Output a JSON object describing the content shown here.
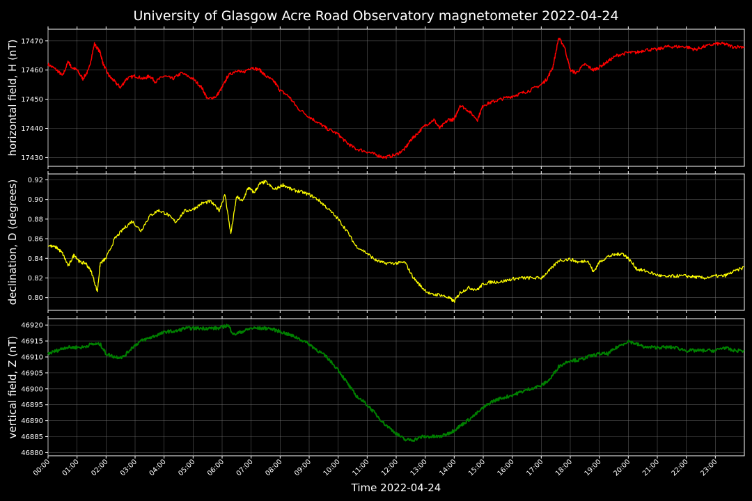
{
  "title": "University of Glasgow Acre Road Observatory magnetometer 2022-04-24",
  "chart_data": [
    {
      "type": "line",
      "ylabel": "horizontal field, H (nT)",
      "color": "#ff0000",
      "ylim": [
        17427,
        17474
      ],
      "yticks": [
        17430,
        17440,
        17450,
        17460,
        17470
      ],
      "ytick_labels": [
        "17430",
        "17440",
        "17450",
        "17460",
        "17470"
      ],
      "x_hours": [
        0,
        0.3,
        0.5,
        0.7,
        0.8,
        1.0,
        1.2,
        1.4,
        1.6,
        1.8,
        1.9,
        2.1,
        2.3,
        2.5,
        2.7,
        3.0,
        3.3,
        3.5,
        3.7,
        4.0,
        4.3,
        4.6,
        5.0,
        5.3,
        5.5,
        5.8,
        6.0,
        6.2,
        6.5,
        6.7,
        7.0,
        7.3,
        7.5,
        7.8,
        8.0,
        8.3,
        8.6,
        9.0,
        9.3,
        9.6,
        10.0,
        10.3,
        10.6,
        11.0,
        11.3,
        11.6,
        12.0,
        12.3,
        12.5,
        12.7,
        13.0,
        13.3,
        13.5,
        13.8,
        14.0,
        14.2,
        14.5,
        14.8,
        15.0,
        15.3,
        15.6,
        16.0,
        16.3,
        16.6,
        17.0,
        17.2,
        17.4,
        17.6,
        17.8,
        18.0,
        18.2,
        18.5,
        18.8,
        19.0,
        19.3,
        19.6,
        20.0,
        20.3,
        20.6,
        21.0,
        21.3,
        21.6,
        22.0,
        22.3,
        22.6,
        23.0,
        23.3,
        23.6,
        24.0
      ],
      "y": [
        17462,
        17460,
        17458,
        17463,
        17461,
        17460,
        17457,
        17460,
        17469,
        17466,
        17462,
        17458,
        17456,
        17454,
        17457,
        17458,
        17457,
        17458,
        17456,
        17458,
        17457,
        17459,
        17457,
        17454,
        17450,
        17451,
        17454,
        17458,
        17460,
        17459,
        17461,
        17460,
        17458,
        17456,
        17453,
        17451,
        17447,
        17444,
        17442,
        17440,
        17438,
        17435,
        17433,
        17432,
        17431,
        17430,
        17431,
        17433,
        17436,
        17438,
        17441,
        17443,
        17440,
        17443,
        17443,
        17448,
        17446,
        17443,
        17448,
        17449,
        17450,
        17451,
        17452,
        17453,
        17455,
        17457,
        17461,
        17471,
        17468,
        17460,
        17459,
        17462,
        17460,
        17461,
        17463,
        17465,
        17466,
        17466,
        17467,
        17467,
        17468,
        17468,
        17468,
        17467,
        17468,
        17469,
        17469,
        17468,
        17468
      ],
      "line_width": 1.5
    },
    {
      "type": "line",
      "ylabel": "declination, D (degrees)",
      "color": "#ffff00",
      "ylim": [
        0.787,
        0.926
      ],
      "yticks": [
        0.8,
        0.82,
        0.84,
        0.86,
        0.88,
        0.9,
        0.92
      ],
      "ytick_labels": [
        "0.80",
        "0.82",
        "0.84",
        "0.86",
        "0.88",
        "0.90",
        "0.92"
      ],
      "x_hours": [
        0,
        0.3,
        0.5,
        0.7,
        0.9,
        1.1,
        1.3,
        1.5,
        1.7,
        1.8,
        2.0,
        2.3,
        2.6,
        2.9,
        3.2,
        3.5,
        3.8,
        4.1,
        4.4,
        4.7,
        5.0,
        5.3,
        5.6,
        5.9,
        6.1,
        6.3,
        6.5,
        6.7,
        6.9,
        7.1,
        7.3,
        7.5,
        7.8,
        8.1,
        8.4,
        8.7,
        9.0,
        9.3,
        9.6,
        10.0,
        10.3,
        10.6,
        11.0,
        11.3,
        11.6,
        12.0,
        12.3,
        12.6,
        12.9,
        13.2,
        13.5,
        13.8,
        14.0,
        14.2,
        14.5,
        14.8,
        15.0,
        15.3,
        15.6,
        16.0,
        16.3,
        16.6,
        17.0,
        17.3,
        17.6,
        18.0,
        18.3,
        18.6,
        18.8,
        19.0,
        19.3,
        19.6,
        19.8,
        20.0,
        20.3,
        20.6,
        21.0,
        21.3,
        21.6,
        22.0,
        22.3,
        22.6,
        23.0,
        23.3,
        23.6,
        24.0
      ],
      "y": [
        0.853,
        0.851,
        0.845,
        0.832,
        0.844,
        0.836,
        0.835,
        0.826,
        0.806,
        0.835,
        0.84,
        0.86,
        0.87,
        0.878,
        0.868,
        0.883,
        0.889,
        0.885,
        0.877,
        0.888,
        0.89,
        0.896,
        0.898,
        0.889,
        0.905,
        0.865,
        0.903,
        0.898,
        0.912,
        0.907,
        0.916,
        0.918,
        0.91,
        0.915,
        0.91,
        0.908,
        0.905,
        0.9,
        0.892,
        0.88,
        0.868,
        0.853,
        0.845,
        0.838,
        0.835,
        0.835,
        0.836,
        0.82,
        0.81,
        0.803,
        0.803,
        0.8,
        0.796,
        0.805,
        0.81,
        0.808,
        0.814,
        0.816,
        0.816,
        0.819,
        0.82,
        0.82,
        0.82,
        0.828,
        0.838,
        0.839,
        0.836,
        0.838,
        0.826,
        0.836,
        0.842,
        0.844,
        0.845,
        0.84,
        0.829,
        0.827,
        0.823,
        0.821,
        0.822,
        0.822,
        0.821,
        0.82,
        0.822,
        0.822,
        0.826,
        0.831
      ],
      "line_width": 1.3
    },
    {
      "type": "line",
      "ylabel": "vertical field, Z (nT)",
      "color": "#008000",
      "ylim": [
        46879,
        46922
      ],
      "yticks": [
        46880,
        46885,
        46890,
        46895,
        46900,
        46905,
        46910,
        46915,
        46920
      ],
      "ytick_labels": [
        "46880",
        "46885",
        "46890",
        "46895",
        "46900",
        "46905",
        "46910",
        "46915",
        "46920"
      ],
      "x_hours": [
        0,
        0.3,
        0.6,
        0.9,
        1.2,
        1.5,
        1.8,
        2.0,
        2.3,
        2.6,
        2.9,
        3.2,
        3.5,
        3.8,
        4.1,
        4.4,
        4.7,
        5.0,
        5.3,
        5.6,
        5.9,
        6.2,
        6.4,
        6.7,
        7.0,
        7.3,
        7.6,
        8.0,
        8.3,
        8.6,
        9.0,
        9.3,
        9.6,
        10.0,
        10.3,
        10.6,
        11.0,
        11.3,
        11.6,
        12.0,
        12.3,
        12.6,
        12.9,
        13.2,
        13.5,
        13.8,
        14.0,
        14.3,
        14.6,
        15.0,
        15.3,
        15.6,
        16.0,
        16.3,
        16.6,
        17.0,
        17.3,
        17.6,
        18.0,
        18.3,
        18.6,
        19.0,
        19.3,
        19.6,
        20.0,
        20.3,
        20.6,
        21.0,
        21.3,
        21.6,
        22.0,
        22.3,
        22.6,
        23.0,
        23.3,
        23.6,
        24.0
      ],
      "y": [
        46911,
        46912,
        46913,
        46913,
        46913,
        46914,
        46914,
        46911,
        46910,
        46910,
        46913,
        46915,
        46916,
        46917,
        46918,
        46918,
        46919,
        46919,
        46919,
        46919,
        46919,
        46920,
        46917,
        46918,
        46919,
        46919,
        46919,
        46918,
        46917,
        46916,
        46914,
        46912,
        46910,
        46906,
        46902,
        46898,
        46895,
        46892,
        46889,
        46886,
        46884,
        46884,
        46885,
        46885,
        46885,
        46886,
        46887,
        46889,
        46891,
        46894,
        46896,
        46897,
        46898,
        46899,
        46900,
        46901,
        46903,
        46907,
        46909,
        46909,
        46910,
        46911,
        46911,
        46913,
        46915,
        46914,
        46913,
        46913,
        46913,
        46913,
        46912,
        46912,
        46912,
        46912,
        46913,
        46912,
        46912
      ],
      "line_width": 2.0
    }
  ],
  "xaxis": {
    "label": "Time 2022-04-24",
    "xlim_hours": [
      0,
      24
    ],
    "tick_labels": [
      "00:00",
      "01:00",
      "02:00",
      "03:00",
      "04:00",
      "05:00",
      "06:00",
      "07:00",
      "08:00",
      "09:00",
      "10:00",
      "11:00",
      "12:00",
      "13:00",
      "14:00",
      "15:00",
      "16:00",
      "17:00",
      "18:00",
      "19:00",
      "20:00",
      "21:00",
      "22:00",
      "23:00"
    ]
  },
  "grid": true
}
